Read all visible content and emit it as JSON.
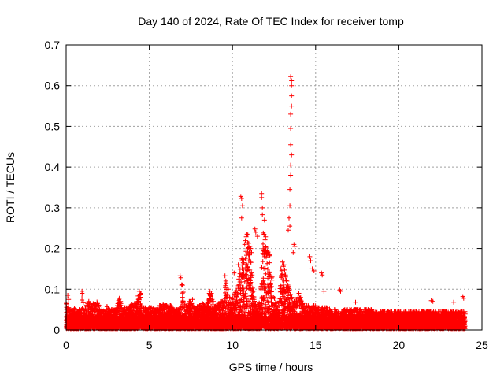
{
  "chart_data": {
    "type": "scatter",
    "title": "Day 140 of 2024, Rate Of TEC Index for receiver tomp",
    "xlabel": "GPS time / hours",
    "ylabel": "ROTI / TECUs",
    "xlim": [
      0,
      25
    ],
    "ylim": [
      0,
      0.7
    ],
    "xticks": [
      0,
      5,
      10,
      15,
      20,
      25
    ],
    "xtick_labels": [
      "0",
      "5",
      "10",
      "15",
      "20",
      "25"
    ],
    "yticks": [
      0,
      0.1,
      0.2,
      0.3,
      0.4,
      0.5,
      0.6,
      0.7
    ],
    "ytick_labels": [
      "0",
      "0.1",
      "0.2",
      "0.3",
      "0.4",
      "0.5",
      "0.6",
      "0.7"
    ],
    "grid": true,
    "marker": "+",
    "color": "#ff0000",
    "series": [
      {
        "name": "ROTI",
        "x_start": 0.0,
        "x_step": 0.05,
        "background_envelope": [
          0.08,
          0.06,
          0.055,
          0.05,
          0.05,
          0.05,
          0.05,
          0.045,
          0.045,
          0.05,
          0.06,
          0.05,
          0.05,
          0.045,
          0.05,
          0.05,
          0.05,
          0.05,
          0.05,
          0.09,
          0.09,
          0.05,
          0.05,
          0.06,
          0.065,
          0.065,
          0.065,
          0.07,
          0.065,
          0.06,
          0.06,
          0.06,
          0.065,
          0.065,
          0.065,
          0.065,
          0.065,
          0.07,
          0.07,
          0.065,
          0.05,
          0.05,
          0.05,
          0.05,
          0.05,
          0.05,
          0.05,
          0.05,
          0.05,
          0.06,
          0.06,
          0.05,
          0.05,
          0.05,
          0.05,
          0.05,
          0.05,
          0.05,
          0.05,
          0.06,
          0.06,
          0.06,
          0.07,
          0.075,
          0.075,
          0.07,
          0.06,
          0.055,
          0.05,
          0.05,
          0.055,
          0.055,
          0.055,
          0.05,
          0.05,
          0.06,
          0.065,
          0.065,
          0.065,
          0.065,
          0.065,
          0.065,
          0.065,
          0.065,
          0.065,
          0.07,
          0.085,
          0.085,
          0.09,
          0.09,
          0.06,
          0.05,
          0.05,
          0.055,
          0.055,
          0.055,
          0.055,
          0.055,
          0.055,
          0.055,
          0.055,
          0.055,
          0.055,
          0.06,
          0.06,
          0.055,
          0.05,
          0.05,
          0.05,
          0.05,
          0.05,
          0.05,
          0.06,
          0.06,
          0.06,
          0.065,
          0.065,
          0.06,
          0.06,
          0.06,
          0.06,
          0.06,
          0.06,
          0.06,
          0.06,
          0.06,
          0.06,
          0.06,
          0.06,
          0.05,
          0.05,
          0.05,
          0.05,
          0.05,
          0.05,
          0.05,
          0.05,
          0.06,
          0.11,
          0.12,
          0.12,
          0.06,
          0.06,
          0.06,
          0.06,
          0.06,
          0.06,
          0.07,
          0.07,
          0.07,
          0.065,
          0.06,
          0.06,
          0.06,
          0.06,
          0.06,
          0.06,
          0.06,
          0.06,
          0.06,
          0.06,
          0.06,
          0.06,
          0.065,
          0.065,
          0.065,
          0.065,
          0.065,
          0.065,
          0.065,
          0.07,
          0.075,
          0.09,
          0.09,
          0.09,
          0.075,
          0.07,
          0.07,
          0.06,
          0.06,
          0.06,
          0.06,
          0.065,
          0.065,
          0.07,
          0.07,
          0.07,
          0.07,
          0.065,
          0.07,
          0.075,
          0.11,
          0.12,
          0.1,
          0.1,
          0.08,
          0.08,
          0.07,
          0.075,
          0.08,
          0.085,
          0.09,
          0.09,
          0.1,
          0.11,
          0.12,
          0.13,
          0.13,
          0.14,
          0.15,
          0.16,
          0.18,
          0.19,
          0.2,
          0.21,
          0.22,
          0.23,
          0.24,
          0.24,
          0.23,
          0.2,
          0.19,
          0.18,
          0.15,
          0.12,
          0.1,
          0.08,
          0.07,
          0.06,
          0.06,
          0.06,
          0.065,
          0.07,
          0.09,
          0.13,
          0.18,
          0.22,
          0.26,
          0.27,
          0.26,
          0.23,
          0.21,
          0.2,
          0.21,
          0.2,
          0.15,
          0.13,
          0.13,
          0.1,
          0.09,
          0.08,
          0.07,
          0.065,
          0.06,
          0.06,
          0.07,
          0.09,
          0.12,
          0.15,
          0.17,
          0.17,
          0.16,
          0.15,
          0.14,
          0.13,
          0.12,
          0.12,
          0.11,
          0.1,
          0.09,
          0.08,
          0.08,
          0.07,
          0.07,
          0.07,
          0.07,
          0.075,
          0.08,
          0.08,
          0.09,
          0.09,
          0.08,
          0.075,
          0.07,
          0.065,
          0.06,
          0.06,
          0.06,
          0.06,
          0.06,
          0.06,
          0.06,
          0.07,
          0.07,
          0.06,
          0.06,
          0.06,
          0.06,
          0.06,
          0.06,
          0.055,
          0.055,
          0.055,
          0.055,
          0.055,
          0.055,
          0.055,
          0.055,
          0.055,
          0.055,
          0.055,
          0.055,
          0.055,
          0.055,
          0.055,
          0.055,
          0.055,
          0.05,
          0.05,
          0.05,
          0.05,
          0.05,
          0.05,
          0.05,
          0.05,
          0.045,
          0.045,
          0.045,
          0.045,
          0.045,
          0.045,
          0.045,
          0.045,
          0.05,
          0.05,
          0.05,
          0.05,
          0.05,
          0.05,
          0.05,
          0.05,
          0.05,
          0.05,
          0.05,
          0.05,
          0.05,
          0.05,
          0.05,
          0.05,
          0.05,
          0.05,
          0.05,
          0.05,
          0.05,
          0.05,
          0.05,
          0.045,
          0.045,
          0.05,
          0.05,
          0.05,
          0.05,
          0.05,
          0.05,
          0.05,
          0.05,
          0.05,
          0.05,
          0.045,
          0.045,
          0.045,
          0.045,
          0.045,
          0.045,
          0.045,
          0.045,
          0.045,
          0.045,
          0.045,
          0.045,
          0.045,
          0.045,
          0.045,
          0.045,
          0.045,
          0.045,
          0.045,
          0.045,
          0.045,
          0.045,
          0.045,
          0.045,
          0.045,
          0.045,
          0.045,
          0.045,
          0.045,
          0.045,
          0.045,
          0.045,
          0.045,
          0.045,
          0.045,
          0.045,
          0.045,
          0.045,
          0.045,
          0.045,
          0.045,
          0.045,
          0.045,
          0.045,
          0.045,
          0.045,
          0.045,
          0.045,
          0.045,
          0.045,
          0.045,
          0.045,
          0.045,
          0.045,
          0.045,
          0.045,
          0.045,
          0.045,
          0.045,
          0.045,
          0.045,
          0.045,
          0.045,
          0.045,
          0.045,
          0.045,
          0.045,
          0.045,
          0.045,
          0.045,
          0.045,
          0.045,
          0.045,
          0.045,
          0.045,
          0.045,
          0.045,
          0.045,
          0.045,
          0.045,
          0.045,
          0.045,
          0.045,
          0.045,
          0.045,
          0.045,
          0.045,
          0.045,
          0.045,
          0.045,
          0.045,
          0.045,
          0.045,
          0.045,
          0.045,
          0.045,
          0.045,
          0.045,
          0.045,
          0.045,
          0.045,
          0.045,
          0.045,
          0.045,
          0.045,
          0.045,
          0.045,
          0.045,
          0.045,
          0.045,
          0.045,
          0.045
        ],
        "peaks": [
          {
            "x": 0.1,
            "y": 0.085
          },
          {
            "x": 0.15,
            "y": 0.075
          },
          {
            "x": 0.95,
            "y": 0.095
          },
          {
            "x": 3.2,
            "y": 0.078
          },
          {
            "x": 4.4,
            "y": 0.095
          },
          {
            "x": 4.5,
            "y": 0.09
          },
          {
            "x": 6.85,
            "y": 0.133
          },
          {
            "x": 6.9,
            "y": 0.128
          },
          {
            "x": 7.0,
            "y": 0.11
          },
          {
            "x": 7.6,
            "y": 0.075
          },
          {
            "x": 8.65,
            "y": 0.095
          },
          {
            "x": 8.7,
            "y": 0.085
          },
          {
            "x": 9.55,
            "y": 0.133
          },
          {
            "x": 9.6,
            "y": 0.12
          },
          {
            "x": 9.75,
            "y": 0.1
          },
          {
            "x": 10.1,
            "y": 0.14
          },
          {
            "x": 10.35,
            "y": 0.16
          },
          {
            "x": 10.5,
            "y": 0.328
          },
          {
            "x": 10.55,
            "y": 0.323
          },
          {
            "x": 10.6,
            "y": 0.305
          },
          {
            "x": 10.55,
            "y": 0.275
          },
          {
            "x": 10.7,
            "y": 0.13
          },
          {
            "x": 11.05,
            "y": 0.205
          },
          {
            "x": 11.1,
            "y": 0.2
          },
          {
            "x": 11.15,
            "y": 0.19
          },
          {
            "x": 11.35,
            "y": 0.248
          },
          {
            "x": 11.4,
            "y": 0.24
          },
          {
            "x": 11.5,
            "y": 0.23
          },
          {
            "x": 11.75,
            "y": 0.335
          },
          {
            "x": 11.75,
            "y": 0.325
          },
          {
            "x": 11.8,
            "y": 0.3
          },
          {
            "x": 11.8,
            "y": 0.283
          },
          {
            "x": 11.85,
            "y": 0.238
          },
          {
            "x": 11.9,
            "y": 0.235
          },
          {
            "x": 13.5,
            "y": 0.622
          },
          {
            "x": 13.55,
            "y": 0.612
          },
          {
            "x": 13.55,
            "y": 0.6
          },
          {
            "x": 13.55,
            "y": 0.575
          },
          {
            "x": 13.55,
            "y": 0.55
          },
          {
            "x": 13.5,
            "y": 0.53
          },
          {
            "x": 13.5,
            "y": 0.495
          },
          {
            "x": 13.5,
            "y": 0.455
          },
          {
            "x": 13.55,
            "y": 0.43
          },
          {
            "x": 13.5,
            "y": 0.405
          },
          {
            "x": 13.5,
            "y": 0.38
          },
          {
            "x": 13.45,
            "y": 0.345
          },
          {
            "x": 13.45,
            "y": 0.305
          },
          {
            "x": 13.4,
            "y": 0.275
          },
          {
            "x": 13.45,
            "y": 0.255
          },
          {
            "x": 13.35,
            "y": 0.245
          },
          {
            "x": 13.7,
            "y": 0.21
          },
          {
            "x": 13.75,
            "y": 0.205
          },
          {
            "x": 13.65,
            "y": 0.19
          },
          {
            "x": 14.65,
            "y": 0.18
          },
          {
            "x": 14.7,
            "y": 0.17
          },
          {
            "x": 14.8,
            "y": 0.15
          },
          {
            "x": 14.9,
            "y": 0.145
          },
          {
            "x": 15.35,
            "y": 0.14
          },
          {
            "x": 15.4,
            "y": 0.135
          },
          {
            "x": 15.5,
            "y": 0.095
          },
          {
            "x": 16.45,
            "y": 0.098
          },
          {
            "x": 16.5,
            "y": 0.095
          },
          {
            "x": 17.4,
            "y": 0.068
          },
          {
            "x": 21.95,
            "y": 0.072
          },
          {
            "x": 22.05,
            "y": 0.07
          },
          {
            "x": 23.85,
            "y": 0.082
          },
          {
            "x": 23.9,
            "y": 0.078
          },
          {
            "x": 23.3,
            "y": 0.068
          }
        ]
      }
    ]
  }
}
